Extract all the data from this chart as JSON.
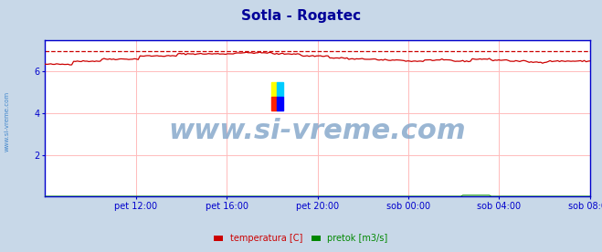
{
  "title": "Sotla - Rogatec",
  "title_color": "#000099",
  "title_fontsize": 11,
  "bg_color": "#c8d8e8",
  "plot_bg_color": "#ffffff",
  "grid_color": "#ffbbbb",
  "axis_color": "#0000cc",
  "watermark": "www.si-vreme.com",
  "watermark_color": "#88aacc",
  "watermark_fontsize": 22,
  "side_label": "www.si-vreme.com",
  "side_label_color": "#4488cc",
  "ylim": [
    0,
    7.5
  ],
  "yticks": [
    2,
    4,
    6
  ],
  "xlabel_ticks": [
    "pet 12:00",
    "pet 16:00",
    "pet 20:00",
    "sob 00:00",
    "sob 04:00",
    "sob 08:00"
  ],
  "temp_color": "#cc0000",
  "temp_dashed_value": 7.0,
  "pretok_color": "#008800",
  "legend_items": [
    {
      "label": "temperatura [C]",
      "color": "#cc0000"
    },
    {
      "label": "pretok [m3/s]",
      "color": "#008800"
    }
  ],
  "n_points": 288,
  "logo_colors": [
    "#ffff00",
    "#00ccff",
    "#ff2200",
    "#0000ff"
  ]
}
